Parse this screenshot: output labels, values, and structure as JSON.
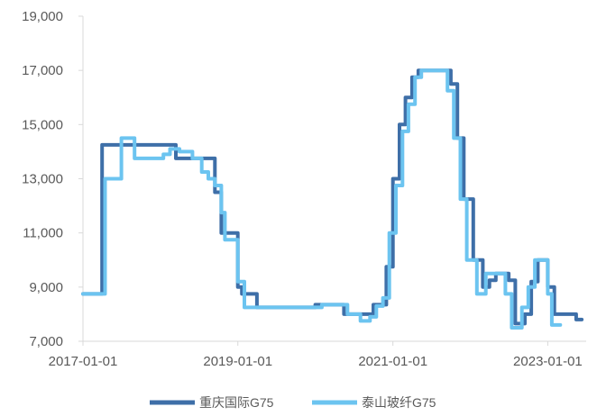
{
  "chart_data": {
    "type": "line",
    "title": "",
    "xlabel": "",
    "ylabel": "",
    "ylim": [
      7000,
      19000
    ],
    "yticks": [
      "7,000",
      "9,000",
      "11,000",
      "13,000",
      "15,000",
      "17,000",
      "19,000"
    ],
    "ytick_values": [
      7000,
      9000,
      11000,
      13000,
      15000,
      17000,
      19000
    ],
    "xticks": [
      "2017-01-01",
      "2019-01-01",
      "2021-01-01",
      "2023-01-01"
    ],
    "xtick_values": [
      "2017-01-01",
      "2019-01-01",
      "2021-01-01",
      "2023-01-01"
    ],
    "xlim": [
      "2017-01-01",
      "2023-07-01"
    ],
    "grid": false,
    "legend_position": "bottom-center",
    "series": [
      {
        "name": "重庆国际G75",
        "color": "#3E6FA8",
        "points": [
          [
            "2017-01-01",
            8750
          ],
          [
            "2017-04-01",
            8750
          ],
          [
            "2017-04-01",
            14250
          ],
          [
            "2018-03-15",
            14250
          ],
          [
            "2018-03-15",
            13750
          ],
          [
            "2018-09-15",
            13750
          ],
          [
            "2018-09-15",
            12500
          ],
          [
            "2018-10-15",
            12500
          ],
          [
            "2018-10-15",
            11000
          ],
          [
            "2019-01-01",
            11000
          ],
          [
            "2019-01-01",
            9000
          ],
          [
            "2019-01-20",
            9000
          ],
          [
            "2019-01-20",
            8750
          ],
          [
            "2019-04-01",
            8750
          ],
          [
            "2019-04-01",
            8250
          ],
          [
            "2020-01-01",
            8250
          ],
          [
            "2020-01-01",
            8350
          ],
          [
            "2020-05-15",
            8350
          ],
          [
            "2020-05-15",
            8000
          ],
          [
            "2020-10-01",
            8000
          ],
          [
            "2020-10-01",
            8350
          ],
          [
            "2020-12-01",
            8350
          ],
          [
            "2020-12-01",
            9750
          ],
          [
            "2021-01-01",
            9750
          ],
          [
            "2021-01-01",
            13000
          ],
          [
            "2021-02-01",
            13000
          ],
          [
            "2021-02-01",
            15000
          ],
          [
            "2021-03-01",
            15000
          ],
          [
            "2021-03-01",
            16000
          ],
          [
            "2021-04-01",
            16000
          ],
          [
            "2021-04-01",
            16750
          ],
          [
            "2021-05-01",
            16750
          ],
          [
            "2021-05-01",
            17000
          ],
          [
            "2021-10-01",
            17000
          ],
          [
            "2021-10-01",
            16500
          ],
          [
            "2021-11-01",
            16500
          ],
          [
            "2021-11-01",
            14500
          ],
          [
            "2021-12-01",
            14500
          ],
          [
            "2021-12-01",
            12250
          ],
          [
            "2022-01-15",
            12250
          ],
          [
            "2022-01-15",
            10000
          ],
          [
            "2022-03-01",
            10000
          ],
          [
            "2022-03-01",
            9000
          ],
          [
            "2022-04-01",
            9000
          ],
          [
            "2022-04-01",
            9250
          ],
          [
            "2022-05-01",
            9250
          ],
          [
            "2022-05-01",
            9500
          ],
          [
            "2022-07-01",
            9500
          ],
          [
            "2022-07-01",
            9250
          ],
          [
            "2022-08-01",
            9250
          ],
          [
            "2022-08-01",
            7650
          ],
          [
            "2022-09-15",
            7650
          ],
          [
            "2022-09-15",
            8000
          ],
          [
            "2022-10-15",
            8000
          ],
          [
            "2022-10-15",
            9200
          ],
          [
            "2022-11-15",
            9200
          ],
          [
            "2022-11-15",
            10000
          ],
          [
            "2023-01-01",
            10000
          ],
          [
            "2023-01-01",
            9000
          ],
          [
            "2023-02-01",
            9000
          ],
          [
            "2023-02-01",
            8000
          ],
          [
            "2023-05-15",
            8000
          ],
          [
            "2023-05-15",
            7800
          ],
          [
            "2023-06-10",
            7800
          ]
        ]
      },
      {
        "name": "泰山玻纤G75",
        "color": "#6CC4F0",
        "points": [
          [
            "2017-01-01",
            8750
          ],
          [
            "2017-04-15",
            8750
          ],
          [
            "2017-04-15",
            13000
          ],
          [
            "2017-07-01",
            13000
          ],
          [
            "2017-07-01",
            14500
          ],
          [
            "2017-09-01",
            14500
          ],
          [
            "2017-09-01",
            13750
          ],
          [
            "2018-01-15",
            13750
          ],
          [
            "2018-01-15",
            13900
          ],
          [
            "2018-02-15",
            13900
          ],
          [
            "2018-02-15",
            14100
          ],
          [
            "2018-04-01",
            14100
          ],
          [
            "2018-04-01",
            14000
          ],
          [
            "2018-06-01",
            14000
          ],
          [
            "2018-06-01",
            13750
          ],
          [
            "2018-07-15",
            13750
          ],
          [
            "2018-07-15",
            13250
          ],
          [
            "2018-08-15",
            13250
          ],
          [
            "2018-08-15",
            13000
          ],
          [
            "2018-09-15",
            13000
          ],
          [
            "2018-09-15",
            12750
          ],
          [
            "2018-10-15",
            12750
          ],
          [
            "2018-10-15",
            11750
          ],
          [
            "2018-11-01",
            11750
          ],
          [
            "2018-11-01",
            10750
          ],
          [
            "2019-01-01",
            10750
          ],
          [
            "2019-01-01",
            9200
          ],
          [
            "2019-02-01",
            9200
          ],
          [
            "2019-02-01",
            8250
          ],
          [
            "2020-02-01",
            8250
          ],
          [
            "2020-02-01",
            8350
          ],
          [
            "2020-06-01",
            8350
          ],
          [
            "2020-06-01",
            8000
          ],
          [
            "2020-08-01",
            8000
          ],
          [
            "2020-08-01",
            7750
          ],
          [
            "2020-09-15",
            7750
          ],
          [
            "2020-09-15",
            7900
          ],
          [
            "2020-10-15",
            7900
          ],
          [
            "2020-10-15",
            8300
          ],
          [
            "2020-11-15",
            8300
          ],
          [
            "2020-11-15",
            8600
          ],
          [
            "2020-12-15",
            8600
          ],
          [
            "2020-12-15",
            11000
          ],
          [
            "2021-01-15",
            11000
          ],
          [
            "2021-01-15",
            12750
          ],
          [
            "2021-02-15",
            12750
          ],
          [
            "2021-02-15",
            14750
          ],
          [
            "2021-03-15",
            14750
          ],
          [
            "2021-03-15",
            15750
          ],
          [
            "2021-04-15",
            15750
          ],
          [
            "2021-04-15",
            16750
          ],
          [
            "2021-05-15",
            16750
          ],
          [
            "2021-05-15",
            17000
          ],
          [
            "2021-09-15",
            17000
          ],
          [
            "2021-09-15",
            16250
          ],
          [
            "2021-10-15",
            16250
          ],
          [
            "2021-10-15",
            14500
          ],
          [
            "2021-11-15",
            14500
          ],
          [
            "2021-11-15",
            12250
          ],
          [
            "2021-12-15",
            12250
          ],
          [
            "2021-12-15",
            10000
          ],
          [
            "2022-02-01",
            10000
          ],
          [
            "2022-02-01",
            8750
          ],
          [
            "2022-03-15",
            8750
          ],
          [
            "2022-03-15",
            9500
          ],
          [
            "2022-06-15",
            9500
          ],
          [
            "2022-06-15",
            8750
          ],
          [
            "2022-07-15",
            8750
          ],
          [
            "2022-07-15",
            7500
          ],
          [
            "2022-09-01",
            7500
          ],
          [
            "2022-09-01",
            8250
          ],
          [
            "2022-10-01",
            8250
          ],
          [
            "2022-10-01",
            9000
          ],
          [
            "2022-11-01",
            9000
          ],
          [
            "2022-11-01",
            10000
          ],
          [
            "2023-01-01",
            10000
          ],
          [
            "2023-01-01",
            8750
          ],
          [
            "2023-01-20",
            8750
          ],
          [
            "2023-01-20",
            7600
          ],
          [
            "2023-03-01",
            7600
          ]
        ]
      }
    ]
  }
}
